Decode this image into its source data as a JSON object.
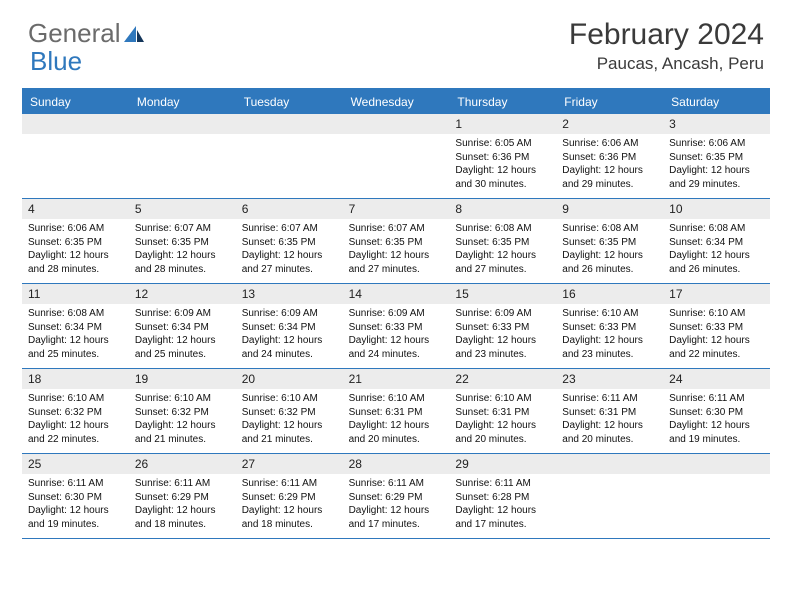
{
  "logo": {
    "text1": "General",
    "text2": "Blue"
  },
  "title": "February 2024",
  "location": "Paucas, Ancash, Peru",
  "colors": {
    "header_bg": "#2f78bd",
    "header_text": "#ffffff",
    "date_bg": "#ececec",
    "border": "#2f78bd",
    "body_text": "#111111",
    "title_text": "#3a3a3a",
    "logo_gray": "#6b6b6b",
    "logo_blue": "#2f78bd"
  },
  "dayNames": [
    "Sunday",
    "Monday",
    "Tuesday",
    "Wednesday",
    "Thursday",
    "Friday",
    "Saturday"
  ],
  "weeks": [
    [
      null,
      null,
      null,
      null,
      {
        "d": "1",
        "sr": "Sunrise: 6:05 AM",
        "ss": "Sunset: 6:36 PM",
        "dl1": "Daylight: 12 hours",
        "dl2": "and 30 minutes."
      },
      {
        "d": "2",
        "sr": "Sunrise: 6:06 AM",
        "ss": "Sunset: 6:36 PM",
        "dl1": "Daylight: 12 hours",
        "dl2": "and 29 minutes."
      },
      {
        "d": "3",
        "sr": "Sunrise: 6:06 AM",
        "ss": "Sunset: 6:35 PM",
        "dl1": "Daylight: 12 hours",
        "dl2": "and 29 minutes."
      }
    ],
    [
      {
        "d": "4",
        "sr": "Sunrise: 6:06 AM",
        "ss": "Sunset: 6:35 PM",
        "dl1": "Daylight: 12 hours",
        "dl2": "and 28 minutes."
      },
      {
        "d": "5",
        "sr": "Sunrise: 6:07 AM",
        "ss": "Sunset: 6:35 PM",
        "dl1": "Daylight: 12 hours",
        "dl2": "and 28 minutes."
      },
      {
        "d": "6",
        "sr": "Sunrise: 6:07 AM",
        "ss": "Sunset: 6:35 PM",
        "dl1": "Daylight: 12 hours",
        "dl2": "and 27 minutes."
      },
      {
        "d": "7",
        "sr": "Sunrise: 6:07 AM",
        "ss": "Sunset: 6:35 PM",
        "dl1": "Daylight: 12 hours",
        "dl2": "and 27 minutes."
      },
      {
        "d": "8",
        "sr": "Sunrise: 6:08 AM",
        "ss": "Sunset: 6:35 PM",
        "dl1": "Daylight: 12 hours",
        "dl2": "and 27 minutes."
      },
      {
        "d": "9",
        "sr": "Sunrise: 6:08 AM",
        "ss": "Sunset: 6:35 PM",
        "dl1": "Daylight: 12 hours",
        "dl2": "and 26 minutes."
      },
      {
        "d": "10",
        "sr": "Sunrise: 6:08 AM",
        "ss": "Sunset: 6:34 PM",
        "dl1": "Daylight: 12 hours",
        "dl2": "and 26 minutes."
      }
    ],
    [
      {
        "d": "11",
        "sr": "Sunrise: 6:08 AM",
        "ss": "Sunset: 6:34 PM",
        "dl1": "Daylight: 12 hours",
        "dl2": "and 25 minutes."
      },
      {
        "d": "12",
        "sr": "Sunrise: 6:09 AM",
        "ss": "Sunset: 6:34 PM",
        "dl1": "Daylight: 12 hours",
        "dl2": "and 25 minutes."
      },
      {
        "d": "13",
        "sr": "Sunrise: 6:09 AM",
        "ss": "Sunset: 6:34 PM",
        "dl1": "Daylight: 12 hours",
        "dl2": "and 24 minutes."
      },
      {
        "d": "14",
        "sr": "Sunrise: 6:09 AM",
        "ss": "Sunset: 6:33 PM",
        "dl1": "Daylight: 12 hours",
        "dl2": "and 24 minutes."
      },
      {
        "d": "15",
        "sr": "Sunrise: 6:09 AM",
        "ss": "Sunset: 6:33 PM",
        "dl1": "Daylight: 12 hours",
        "dl2": "and 23 minutes."
      },
      {
        "d": "16",
        "sr": "Sunrise: 6:10 AM",
        "ss": "Sunset: 6:33 PM",
        "dl1": "Daylight: 12 hours",
        "dl2": "and 23 minutes."
      },
      {
        "d": "17",
        "sr": "Sunrise: 6:10 AM",
        "ss": "Sunset: 6:33 PM",
        "dl1": "Daylight: 12 hours",
        "dl2": "and 22 minutes."
      }
    ],
    [
      {
        "d": "18",
        "sr": "Sunrise: 6:10 AM",
        "ss": "Sunset: 6:32 PM",
        "dl1": "Daylight: 12 hours",
        "dl2": "and 22 minutes."
      },
      {
        "d": "19",
        "sr": "Sunrise: 6:10 AM",
        "ss": "Sunset: 6:32 PM",
        "dl1": "Daylight: 12 hours",
        "dl2": "and 21 minutes."
      },
      {
        "d": "20",
        "sr": "Sunrise: 6:10 AM",
        "ss": "Sunset: 6:32 PM",
        "dl1": "Daylight: 12 hours",
        "dl2": "and 21 minutes."
      },
      {
        "d": "21",
        "sr": "Sunrise: 6:10 AM",
        "ss": "Sunset: 6:31 PM",
        "dl1": "Daylight: 12 hours",
        "dl2": "and 20 minutes."
      },
      {
        "d": "22",
        "sr": "Sunrise: 6:10 AM",
        "ss": "Sunset: 6:31 PM",
        "dl1": "Daylight: 12 hours",
        "dl2": "and 20 minutes."
      },
      {
        "d": "23",
        "sr": "Sunrise: 6:11 AM",
        "ss": "Sunset: 6:31 PM",
        "dl1": "Daylight: 12 hours",
        "dl2": "and 20 minutes."
      },
      {
        "d": "24",
        "sr": "Sunrise: 6:11 AM",
        "ss": "Sunset: 6:30 PM",
        "dl1": "Daylight: 12 hours",
        "dl2": "and 19 minutes."
      }
    ],
    [
      {
        "d": "25",
        "sr": "Sunrise: 6:11 AM",
        "ss": "Sunset: 6:30 PM",
        "dl1": "Daylight: 12 hours",
        "dl2": "and 19 minutes."
      },
      {
        "d": "26",
        "sr": "Sunrise: 6:11 AM",
        "ss": "Sunset: 6:29 PM",
        "dl1": "Daylight: 12 hours",
        "dl2": "and 18 minutes."
      },
      {
        "d": "27",
        "sr": "Sunrise: 6:11 AM",
        "ss": "Sunset: 6:29 PM",
        "dl1": "Daylight: 12 hours",
        "dl2": "and 18 minutes."
      },
      {
        "d": "28",
        "sr": "Sunrise: 6:11 AM",
        "ss": "Sunset: 6:29 PM",
        "dl1": "Daylight: 12 hours",
        "dl2": "and 17 minutes."
      },
      {
        "d": "29",
        "sr": "Sunrise: 6:11 AM",
        "ss": "Sunset: 6:28 PM",
        "dl1": "Daylight: 12 hours",
        "dl2": "and 17 minutes."
      },
      null,
      null
    ]
  ]
}
